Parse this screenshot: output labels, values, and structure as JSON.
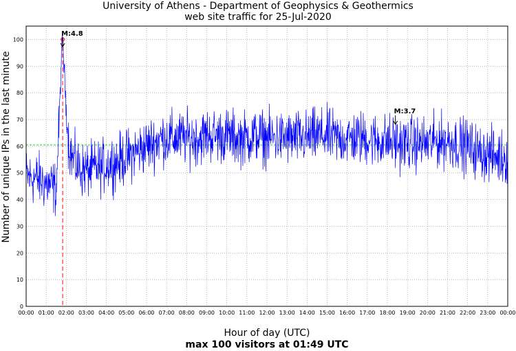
{
  "chart_data": {
    "type": "line",
    "title": "University of Athens - Department of Geophysics & Geothermics",
    "subtitle": "web site traffic for 25-Jul-2020",
    "xlabel": "Hour of day (UTC)",
    "xlabel_sub": "max 100 visitors at 01:49 UTC",
    "ylabel": "Number of unique IPs in the last minute",
    "xlim": [
      0,
      24
    ],
    "ylim": [
      0,
      105
    ],
    "x_ticks": [
      "00:00",
      "01:00",
      "02:00",
      "03:00",
      "04:00",
      "05:00",
      "06:00",
      "07:00",
      "08:00",
      "09:00",
      "10:00",
      "11:00",
      "12:00",
      "13:00",
      "14:00",
      "15:00",
      "16:00",
      "17:00",
      "18:00",
      "19:00",
      "20:00",
      "21:00",
      "22:00",
      "23:00",
      "00:00"
    ],
    "y_ticks": [
      0,
      10,
      20,
      30,
      40,
      50,
      60,
      70,
      80,
      90,
      100
    ],
    "grid": true,
    "series": [
      {
        "color": "#0000ff",
        "x_hours": [
          0,
          0.25,
          0.5,
          0.75,
          1.0,
          1.25,
          1.5,
          1.65,
          1.75,
          1.82,
          1.9,
          2.0,
          2.1,
          2.2,
          2.35,
          2.5,
          2.75,
          3.0,
          3.25,
          3.5,
          3.75,
          4.0,
          4.25,
          4.5,
          4.75,
          5.0,
          5.25,
          5.5,
          5.75,
          6.0,
          6.25,
          6.5,
          6.75,
          7.0,
          7.5,
          8.0,
          8.5,
          9.0,
          9.5,
          10.0,
          10.5,
          11.0,
          11.5,
          12.0,
          12.5,
          13.0,
          13.5,
          14.0,
          14.5,
          15.0,
          15.5,
          16.0,
          16.5,
          17.0,
          17.5,
          18.0,
          18.5,
          19.0,
          19.5,
          20.0,
          20.5,
          21.0,
          21.5,
          22.0,
          22.5,
          23.0,
          23.5,
          24.0
        ],
        "values": [
          49,
          48,
          48,
          47,
          46,
          45,
          44,
          70,
          92,
          100,
          88,
          74,
          63,
          58,
          55,
          53,
          51,
          51,
          51,
          52,
          52,
          53,
          54,
          54,
          55,
          56,
          57,
          58,
          59,
          60,
          61,
          62,
          63,
          63,
          63,
          63,
          63,
          64,
          64,
          64,
          63,
          63,
          64,
          63,
          63,
          63,
          63,
          63,
          64,
          64,
          63,
          63,
          63,
          63,
          62,
          62,
          61,
          61,
          61,
          61,
          62,
          62,
          61,
          60,
          58,
          57,
          56,
          56
        ]
      }
    ],
    "reference_line": {
      "value": 60.5,
      "color": "#00cc00",
      "style": "dashed"
    },
    "events": [
      {
        "label": "M:4.8",
        "x_hours": 1.82,
        "color": "#ff0000"
      },
      {
        "label": "M:3.7",
        "x_hours": 18.4
      }
    ],
    "max_marker": {
      "x_hours": 1.82,
      "value": 100,
      "color": "#ff0000"
    }
  }
}
